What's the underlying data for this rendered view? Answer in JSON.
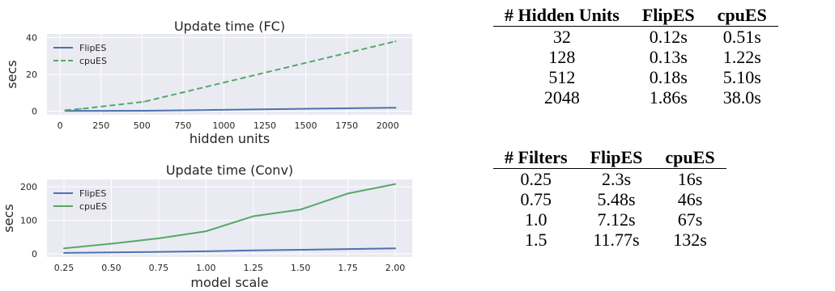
{
  "chart_data": [
    {
      "type": "line",
      "title": "Update time (FC)",
      "xlabel": "hidden units",
      "ylabel": "secs",
      "x": [
        32,
        128,
        512,
        2048
      ],
      "xlim": [
        -80,
        2150
      ],
      "ylim": [
        -2,
        42
      ],
      "xticks": [
        0,
        250,
        500,
        750,
        1000,
        1250,
        1500,
        1750,
        2000
      ],
      "yticks": [
        0,
        20,
        40
      ],
      "grid": true,
      "legend_position": "top-left",
      "series": [
        {
          "name": "FlipES",
          "values": [
            0.12,
            0.13,
            0.18,
            1.86
          ],
          "color": "#4c72b0",
          "style": "solid"
        },
        {
          "name": "cpuES",
          "values": [
            0.51,
            1.22,
            5.1,
            38.0
          ],
          "color": "#55a868",
          "style": "dashed"
        }
      ]
    },
    {
      "type": "line",
      "title": "Update time (Conv)",
      "xlabel": "model scale",
      "ylabel": "secs",
      "x": [
        0.25,
        0.5,
        0.75,
        1.0,
        1.25,
        1.5,
        1.75,
        2.0
      ],
      "xlim": [
        0.16,
        2.09
      ],
      "ylim": [
        -10,
        222
      ],
      "xticks": [
        "0.25",
        "0.50",
        "0.75",
        "1.00",
        "1.25",
        "1.50",
        "1.75",
        "2.00"
      ],
      "yticks": [
        0,
        100,
        200
      ],
      "grid": true,
      "legend_position": "top-left",
      "series": [
        {
          "name": "FlipES",
          "values": [
            2.3,
            4,
            5.48,
            7.12,
            10,
            11.77,
            14,
            16
          ],
          "color": "#4c72b0",
          "style": "solid"
        },
        {
          "name": "cpuES",
          "values": [
            16,
            30,
            46,
            67,
            112,
            132,
            180,
            208
          ],
          "color": "#55a868",
          "style": "solid"
        }
      ]
    }
  ],
  "tables": {
    "hidden_units": {
      "headers": [
        "# Hidden Units",
        "FlipES",
        "cpuES"
      ],
      "rows": [
        [
          "32",
          "0.12s",
          "0.51s"
        ],
        [
          "128",
          "0.13s",
          "1.22s"
        ],
        [
          "512",
          "0.18s",
          "5.10s"
        ],
        [
          "2048",
          "1.86s",
          "38.0s"
        ]
      ]
    },
    "filters": {
      "headers": [
        "# Filters",
        "FlipES",
        "cpuES"
      ],
      "rows": [
        [
          "0.25",
          "2.3s",
          "16s"
        ],
        [
          "0.75",
          "5.48s",
          "46s"
        ],
        [
          "1.0",
          "7.12s",
          "67s"
        ],
        [
          "1.5",
          "11.77s",
          "132s"
        ]
      ]
    }
  },
  "colors": {
    "plot_background": "#eaeaf2",
    "grid": "#ffffff",
    "flipes": "#4c72b0",
    "cpues": "#55a868"
  }
}
